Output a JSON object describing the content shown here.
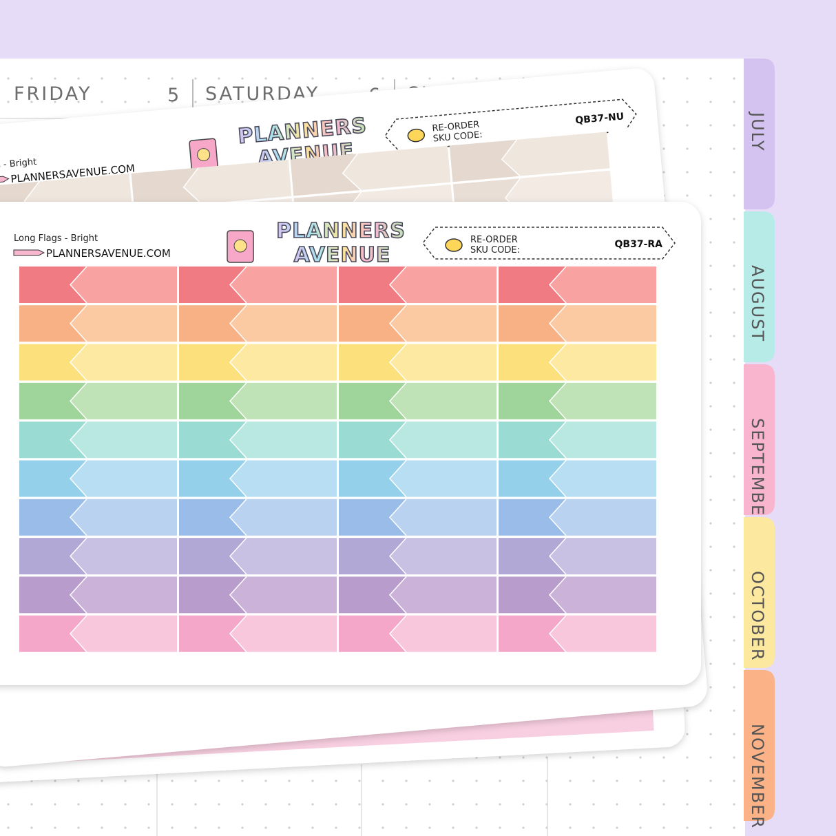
{
  "planner": {
    "days": [
      {
        "name": "FRIDAY",
        "number": "5"
      },
      {
        "name": "SATURDAY",
        "number": "6"
      },
      {
        "name": "SUNDAY"
      }
    ],
    "tabs": [
      "JULY",
      "AUGUST",
      "SEPTEMBER",
      "OCTOBER",
      "NOVEMBER"
    ]
  },
  "back_sheet": {
    "product": "Flags - Bright",
    "website": "PLANNERSAVENUE.COM",
    "logo": [
      "PLANNERS",
      "AVENUE"
    ],
    "reorder": "RE-ORDER",
    "sku_label": "SKU CODE:",
    "sku": "QB37-NU"
  },
  "front_sheet": {
    "product": "Long Flags - Bright",
    "website": "PLANNERSAVENUE.COM",
    "logo": [
      "PLANNERS",
      "AVENUE"
    ],
    "reorder": "RE-ORDER",
    "sku_label": "SKU CODE:",
    "sku": "QB37-RA"
  }
}
